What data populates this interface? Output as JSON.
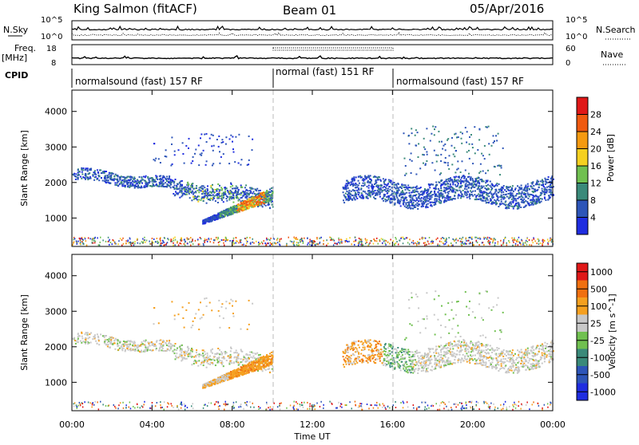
{
  "header": {
    "station": "King Salmon (fitACF)",
    "beam": "Beam 01",
    "date": "05/Apr/2016"
  },
  "summary": {
    "nsky_label": "N.Sky",
    "nsearch_label": "N.Search",
    "nsky_ticks": [
      "10^5",
      "10^0"
    ],
    "nsearch_ticks": [
      "10^5",
      "10^0"
    ],
    "freq_label": "Freq.",
    "freq_unit": "[MHz]",
    "freq_ticks": [
      "18",
      "8"
    ],
    "nave_label": "Nave",
    "nave_ticks": [
      "60",
      "0"
    ],
    "cpid_label": "CPID",
    "cpid_segments": [
      "normalsound (fast) 157 RF",
      "normal (fast) 151 RF",
      "normalsound (fast) 157 RF"
    ]
  },
  "chart_data": [
    {
      "type": "heatmap",
      "panel": "power",
      "ylabel": "Slant Range [km]",
      "xlabel": "Time UT",
      "x_ticks": [
        "00:00",
        "04:00",
        "08:00",
        "12:00",
        "16:00",
        "20:00",
        "00:00"
      ],
      "y_ticks": [
        "1000",
        "2000",
        "3000",
        "4000"
      ],
      "ylim": [
        200,
        4600
      ],
      "xlim": [
        0,
        24
      ],
      "colorbar_label": "Power [dB]",
      "colorbar_ticks": [
        "28",
        "24",
        "20",
        "16",
        "12",
        "8",
        "4"
      ],
      "colors": [
        "#1f2de0",
        "#2d55b8",
        "#3a8a7a",
        "#70c050",
        "#f5d020",
        "#f59a10",
        "#f05a10",
        "#e01818"
      ],
      "mode_boundaries_ut": [
        10,
        16
      ],
      "scatter_regions": [
        {
          "t": [
            0.0,
            10.0
          ],
          "range": [
            1600,
            2300
          ],
          "note": "E/F band"
        },
        {
          "t": [
            6.5,
            10.0
          ],
          "range": [
            850,
            1800
          ],
          "note": "bright arc"
        },
        {
          "t": [
            13.5,
            24.0
          ],
          "range": [
            1300,
            2400
          ],
          "note": "evening band"
        }
      ]
    },
    {
      "type": "heatmap",
      "panel": "velocity",
      "ylabel": "Slant Range [km]",
      "xlabel": "Time UT",
      "x_ticks": [
        "00:00",
        "04:00",
        "08:00",
        "12:00",
        "16:00",
        "20:00",
        "00:00"
      ],
      "y_ticks": [
        "1000",
        "2000",
        "3000",
        "4000"
      ],
      "ylim": [
        200,
        4600
      ],
      "xlim": [
        0,
        24
      ],
      "colorbar_label": "Velocity [m s^-1]",
      "colorbar_ticks": [
        "1000",
        "500",
        "100",
        "25",
        "-25",
        "-100",
        "-500",
        "-1000"
      ],
      "colors": [
        "#1f2de0",
        "#2d55b8",
        "#3a8a7a",
        "#70c050",
        "#c8c8c8",
        "#f5a020",
        "#f07010",
        "#e01818"
      ]
    }
  ]
}
